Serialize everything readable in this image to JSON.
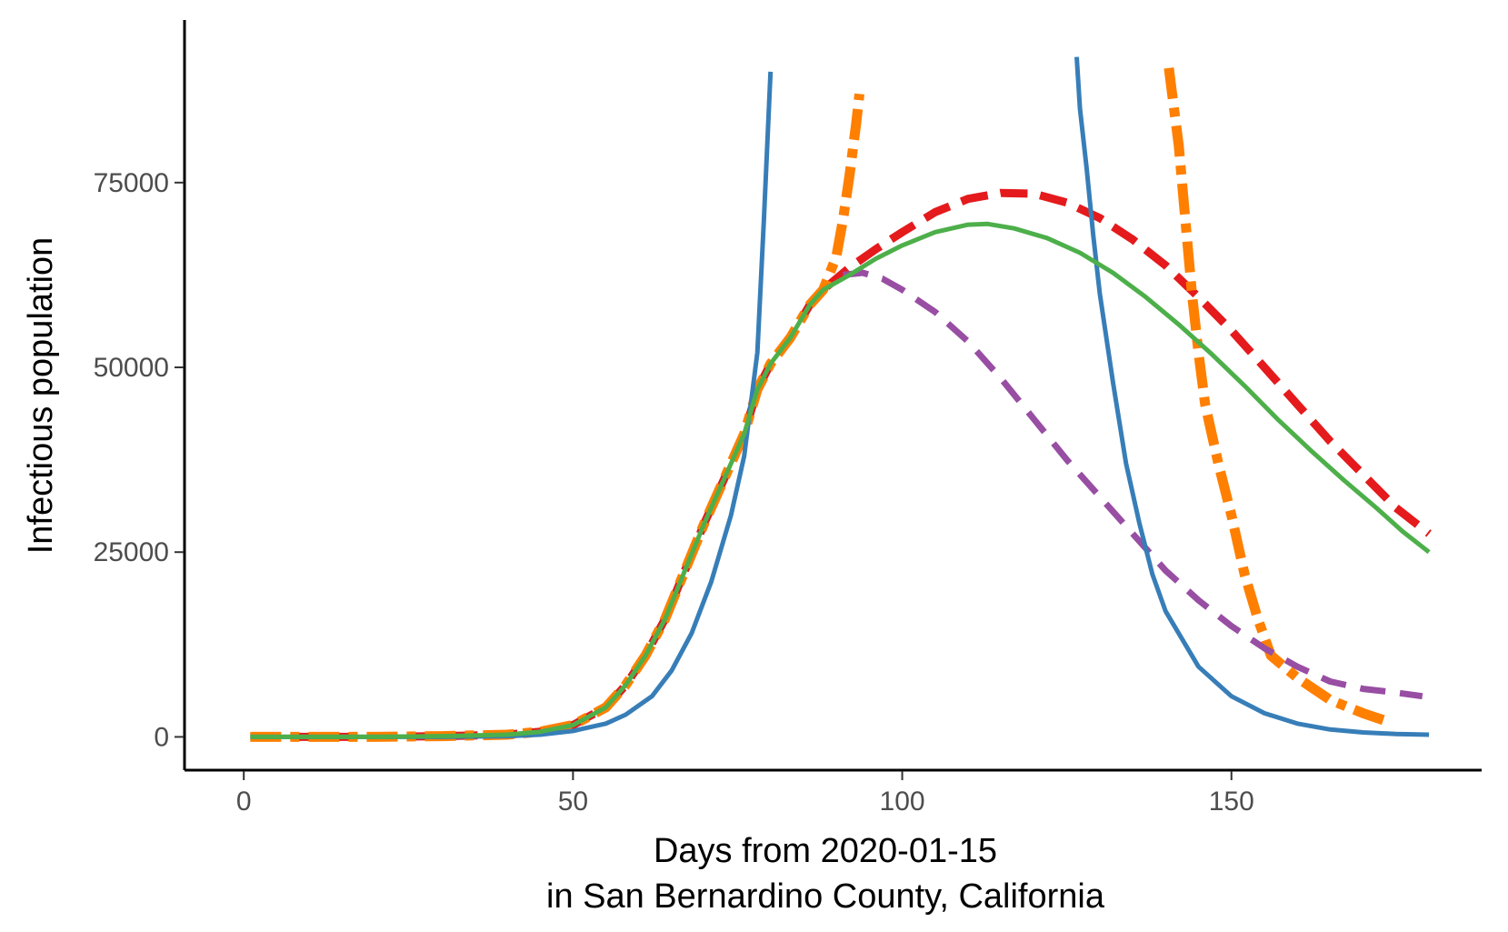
{
  "chart_data": {
    "type": "line",
    "title": "",
    "xlabel_lines": [
      "Days from 2020-01-15",
      "in San Bernardino County, California"
    ],
    "ylabel": "Infectious population",
    "xlim": [
      -9,
      188
    ],
    "ylim": [
      -4500,
      97000
    ],
    "x_ticks": [
      {
        "value": 0,
        "label": "0"
      },
      {
        "value": 50,
        "label": "50"
      },
      {
        "value": 100,
        "label": "100"
      },
      {
        "value": 150,
        "label": "150"
      }
    ],
    "y_ticks": [
      {
        "value": 0,
        "label": "0"
      },
      {
        "value": 25000,
        "label": "25000"
      },
      {
        "value": 50000,
        "label": "50000"
      },
      {
        "value": 75000,
        "label": "75000"
      }
    ],
    "grid": false,
    "legend": "none",
    "series": [
      {
        "color": "#e41a1c",
        "dash": "30 14",
        "width": 9,
        "points": [
          [
            1,
            0
          ],
          [
            10,
            0
          ],
          [
            20,
            0
          ],
          [
            30,
            100
          ],
          [
            40,
            300
          ],
          [
            45,
            700
          ],
          [
            50,
            1600
          ],
          [
            55,
            4000
          ],
          [
            58,
            7000
          ],
          [
            61,
            11000
          ],
          [
            64,
            16000
          ],
          [
            67,
            22500
          ],
          [
            70,
            29000
          ],
          [
            73,
            35000
          ],
          [
            76,
            41000
          ],
          [
            78,
            47000
          ],
          [
            80,
            50500
          ],
          [
            83,
            54000
          ],
          [
            86,
            58500
          ],
          [
            88,
            60500
          ],
          [
            92,
            63500
          ],
          [
            96,
            66000
          ],
          [
            100,
            68300
          ],
          [
            105,
            71000
          ],
          [
            110,
            72800
          ],
          [
            115,
            73600
          ],
          [
            120,
            73500
          ],
          [
            125,
            72300
          ],
          [
            130,
            70200
          ],
          [
            135,
            67300
          ],
          [
            140,
            63800
          ],
          [
            145,
            59500
          ],
          [
            150,
            55000
          ],
          [
            155,
            50000
          ],
          [
            160,
            45000
          ],
          [
            165,
            40000
          ],
          [
            170,
            35500
          ],
          [
            175,
            31000
          ],
          [
            180,
            27500
          ]
        ]
      },
      {
        "color": "#ff7f00",
        "dash": "34 10 10 10",
        "width": 11,
        "points": [
          [
            1,
            0
          ],
          [
            10,
            0
          ],
          [
            20,
            0
          ],
          [
            30,
            100
          ],
          [
            40,
            300
          ],
          [
            45,
            700
          ],
          [
            50,
            1600
          ],
          [
            55,
            4000
          ],
          [
            58,
            7000
          ],
          [
            61,
            11000
          ],
          [
            64,
            16000
          ],
          [
            67,
            22500
          ],
          [
            70,
            29000
          ],
          [
            73,
            35000
          ],
          [
            76,
            41000
          ],
          [
            78,
            47000
          ],
          [
            80,
            50500
          ],
          [
            83,
            54000
          ],
          [
            86,
            58500
          ],
          [
            88,
            60500
          ],
          [
            90,
            65000
          ],
          [
            91,
            70000
          ],
          [
            92,
            76000
          ],
          [
            93,
            83000
          ],
          [
            93.5,
            87000
          ],
          [
            null,
            null
          ],
          [
            140.5,
            90500
          ],
          [
            141,
            87000
          ],
          [
            142,
            80000
          ],
          [
            143,
            70000
          ],
          [
            144,
            60000
          ],
          [
            145,
            52000
          ],
          [
            146,
            45000
          ],
          [
            148,
            37000
          ],
          [
            150,
            30000
          ],
          [
            152,
            22000
          ],
          [
            154,
            16000
          ],
          [
            156,
            11000
          ],
          [
            160,
            8000
          ],
          [
            165,
            5000
          ],
          [
            170,
            3200
          ],
          [
            174,
            2000
          ]
        ]
      },
      {
        "color": "#984ea3",
        "dash": "28 16",
        "width": 7,
        "points": [
          [
            91,
            62500
          ],
          [
            94,
            62800
          ],
          [
            97,
            62000
          ],
          [
            100,
            60500
          ],
          [
            105,
            57500
          ],
          [
            110,
            53500
          ],
          [
            115,
            48500
          ],
          [
            120,
            43000
          ],
          [
            125,
            37500
          ],
          [
            130,
            32500
          ],
          [
            135,
            27500
          ],
          [
            140,
            22500
          ],
          [
            145,
            18500
          ],
          [
            150,
            15000
          ],
          [
            155,
            12000
          ],
          [
            160,
            9500
          ],
          [
            165,
            7500
          ],
          [
            170,
            6500
          ],
          [
            175,
            6000
          ],
          [
            179,
            5500
          ]
        ]
      },
      {
        "color": "#377eb8",
        "dash": "",
        "width": 5,
        "points": [
          [
            1,
            0
          ],
          [
            10,
            0
          ],
          [
            20,
            0
          ],
          [
            30,
            0
          ],
          [
            40,
            100
          ],
          [
            45,
            300
          ],
          [
            50,
            800
          ],
          [
            55,
            1800
          ],
          [
            58,
            3000
          ],
          [
            62,
            5500
          ],
          [
            65,
            9000
          ],
          [
            68,
            14000
          ],
          [
            71,
            21000
          ],
          [
            74,
            30000
          ],
          [
            76,
            38000
          ],
          [
            78,
            52000
          ],
          [
            79,
            70000
          ],
          [
            80,
            90000
          ],
          [
            null,
            null
          ],
          [
            126.5,
            92000
          ],
          [
            127,
            85000
          ],
          [
            128,
            77000
          ],
          [
            129,
            68000
          ],
          [
            130,
            60000
          ],
          [
            132,
            48000
          ],
          [
            134,
            37000
          ],
          [
            136,
            29000
          ],
          [
            138,
            22000
          ],
          [
            140,
            17000
          ],
          [
            145,
            9500
          ],
          [
            150,
            5500
          ],
          [
            155,
            3200
          ],
          [
            160,
            1800
          ],
          [
            165,
            1000
          ],
          [
            170,
            600
          ],
          [
            175,
            400
          ],
          [
            180,
            300
          ]
        ]
      },
      {
        "color": "#4daf4a",
        "dash": "",
        "width": 5,
        "points": [
          [
            1,
            0
          ],
          [
            10,
            0
          ],
          [
            20,
            0
          ],
          [
            30,
            100
          ],
          [
            40,
            300
          ],
          [
            45,
            700
          ],
          [
            50,
            1600
          ],
          [
            55,
            4000
          ],
          [
            58,
            7000
          ],
          [
            61,
            11000
          ],
          [
            64,
            16000
          ],
          [
            67,
            22500
          ],
          [
            70,
            29000
          ],
          [
            73,
            35000
          ],
          [
            76,
            41000
          ],
          [
            78,
            47000
          ],
          [
            80,
            50500
          ],
          [
            83,
            54000
          ],
          [
            86,
            58500
          ],
          [
            88,
            60500
          ],
          [
            92,
            62500
          ],
          [
            96,
            64700
          ],
          [
            100,
            66500
          ],
          [
            105,
            68300
          ],
          [
            110,
            69300
          ],
          [
            113,
            69400
          ],
          [
            117,
            68800
          ],
          [
            122,
            67500
          ],
          [
            127,
            65500
          ],
          [
            132,
            62800
          ],
          [
            137,
            59500
          ],
          [
            142,
            55800
          ],
          [
            147,
            51800
          ],
          [
            152,
            47500
          ],
          [
            157,
            43000
          ],
          [
            162,
            38800
          ],
          [
            167,
            34800
          ],
          [
            172,
            31000
          ],
          [
            176,
            27800
          ],
          [
            180,
            25000
          ]
        ]
      }
    ]
  }
}
